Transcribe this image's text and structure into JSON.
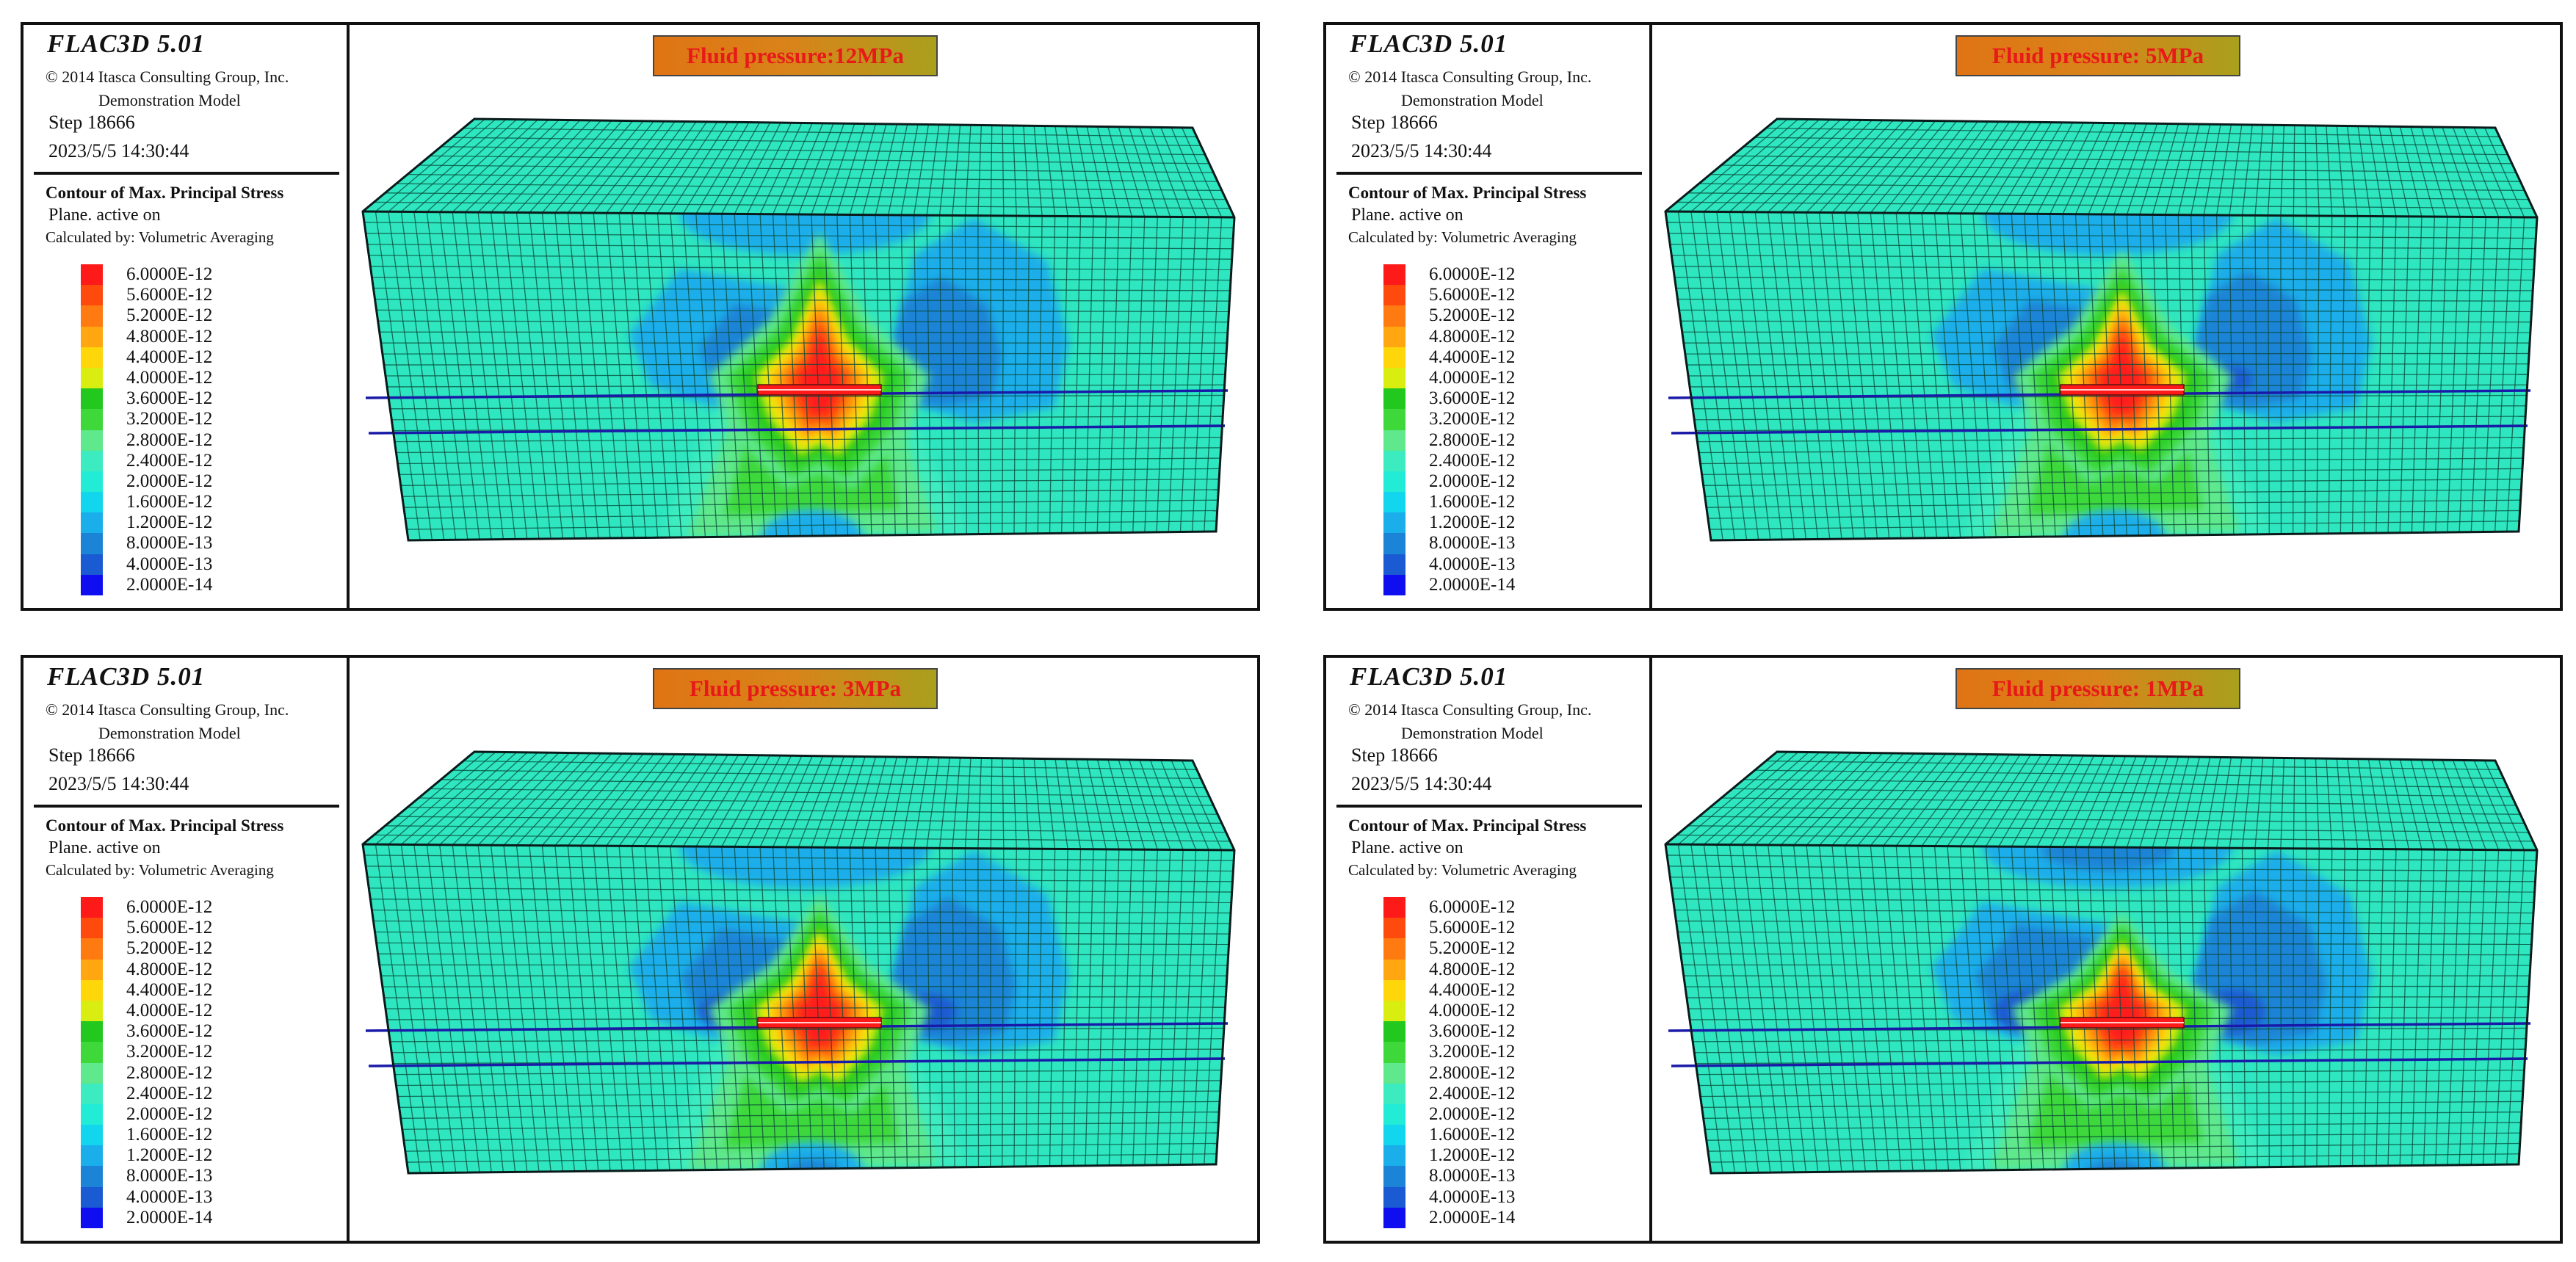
{
  "legend": {
    "app_title": "FLAC3D  5.01",
    "copyright": "© 2014 Itasca Consulting Group, Inc.",
    "model": "Demonstration Model",
    "step": "Step  18666",
    "datetime": "2023/5/5 14:30:44",
    "contour_title": "Contour of Max. Principal Stress",
    "plane": "Plane. active on",
    "calc": "Calculated by: Volumetric Averaging",
    "levels": [
      {
        "label": "6.0000E-12",
        "color": "#ff1a1a"
      },
      {
        "label": "5.6000E-12",
        "color": "#ff4a0e"
      },
      {
        "label": "5.2000E-12",
        "color": "#ff7a10"
      },
      {
        "label": "4.8000E-12",
        "color": "#ffa610"
      },
      {
        "label": "4.4000E-12",
        "color": "#ffd60a"
      },
      {
        "label": "4.0000E-12",
        "color": "#d9ee10"
      },
      {
        "label": "3.6000E-12",
        "color": "#22c81e"
      },
      {
        "label": "3.2000E-12",
        "color": "#3ed83a"
      },
      {
        "label": "2.8000E-12",
        "color": "#5fe88c"
      },
      {
        "label": "2.4000E-12",
        "color": "#3cecc0"
      },
      {
        "label": "2.0000E-12",
        "color": "#22ecd6"
      },
      {
        "label": "1.6000E-12",
        "color": "#12d6ee"
      },
      {
        "label": "1.2000E-12",
        "color": "#1aaeea"
      },
      {
        "label": "8.0000E-13",
        "color": "#1c84d6"
      },
      {
        "label": "4.0000E-13",
        "color": "#1a5ad2"
      },
      {
        "label": "2.0000E-14",
        "color": "#0e0ef0"
      }
    ]
  },
  "panels": [
    {
      "label": "Fluid pressure:12MPa"
    },
    {
      "label": "Fluid pressure: 5MPa"
    },
    {
      "label": "Fluid pressure: 3MPa"
    },
    {
      "label": "Fluid pressure: 1MPa"
    }
  ],
  "colors": {
    "base": "#2ee6c0",
    "grid": "#0a4a3a",
    "outline": "#0a1a1a",
    "seam": "#1a1aa8"
  }
}
